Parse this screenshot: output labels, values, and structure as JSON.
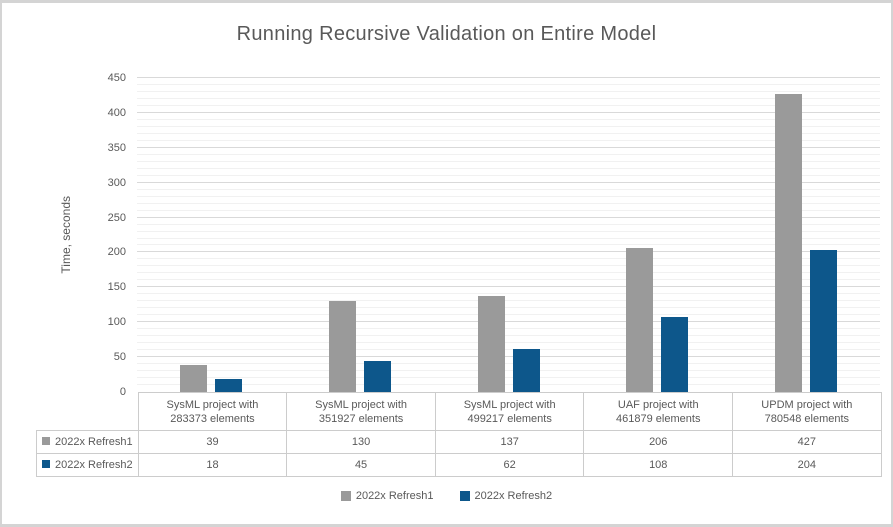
{
  "chart_data": {
    "type": "bar",
    "title": "Running Recursive Validation on Entire Model",
    "categories": [
      "SysML project with 283373 elements",
      "SysML project with 351927 elements",
      "SysML project with 499217 elements",
      "UAF project with 461879 elements",
      "UPDM project with 780548 elements"
    ],
    "category_lines": [
      [
        "SysML project with",
        "283373 elements"
      ],
      [
        "SysML project with",
        "351927 elements"
      ],
      [
        "SysML project with",
        "499217 elements"
      ],
      [
        "UAF project with",
        "461879 elements"
      ],
      [
        "UPDM project with",
        "780548 elements"
      ]
    ],
    "series": [
      {
        "name": "2022x Refresh1",
        "color": "#9a9a9a",
        "values": [
          39,
          130,
          137,
          206,
          427
        ]
      },
      {
        "name": "2022x Refresh2",
        "color": "#0d578b",
        "values": [
          18,
          45,
          62,
          108,
          204
        ]
      }
    ],
    "xlabel": "",
    "ylabel": "Time, seconds",
    "ylim": [
      0,
      450
    ],
    "ytick_step": 50,
    "yminor_step": 10,
    "grid": true,
    "legend_position": "bottom",
    "show_data_table": true,
    "colors": {
      "major_gridline": "#d9d9d9",
      "minor_gridline": "#f1f1f1",
      "text": "#595959",
      "table_border": "#cccccc",
      "panel_border": "#d4d4d4"
    }
  }
}
